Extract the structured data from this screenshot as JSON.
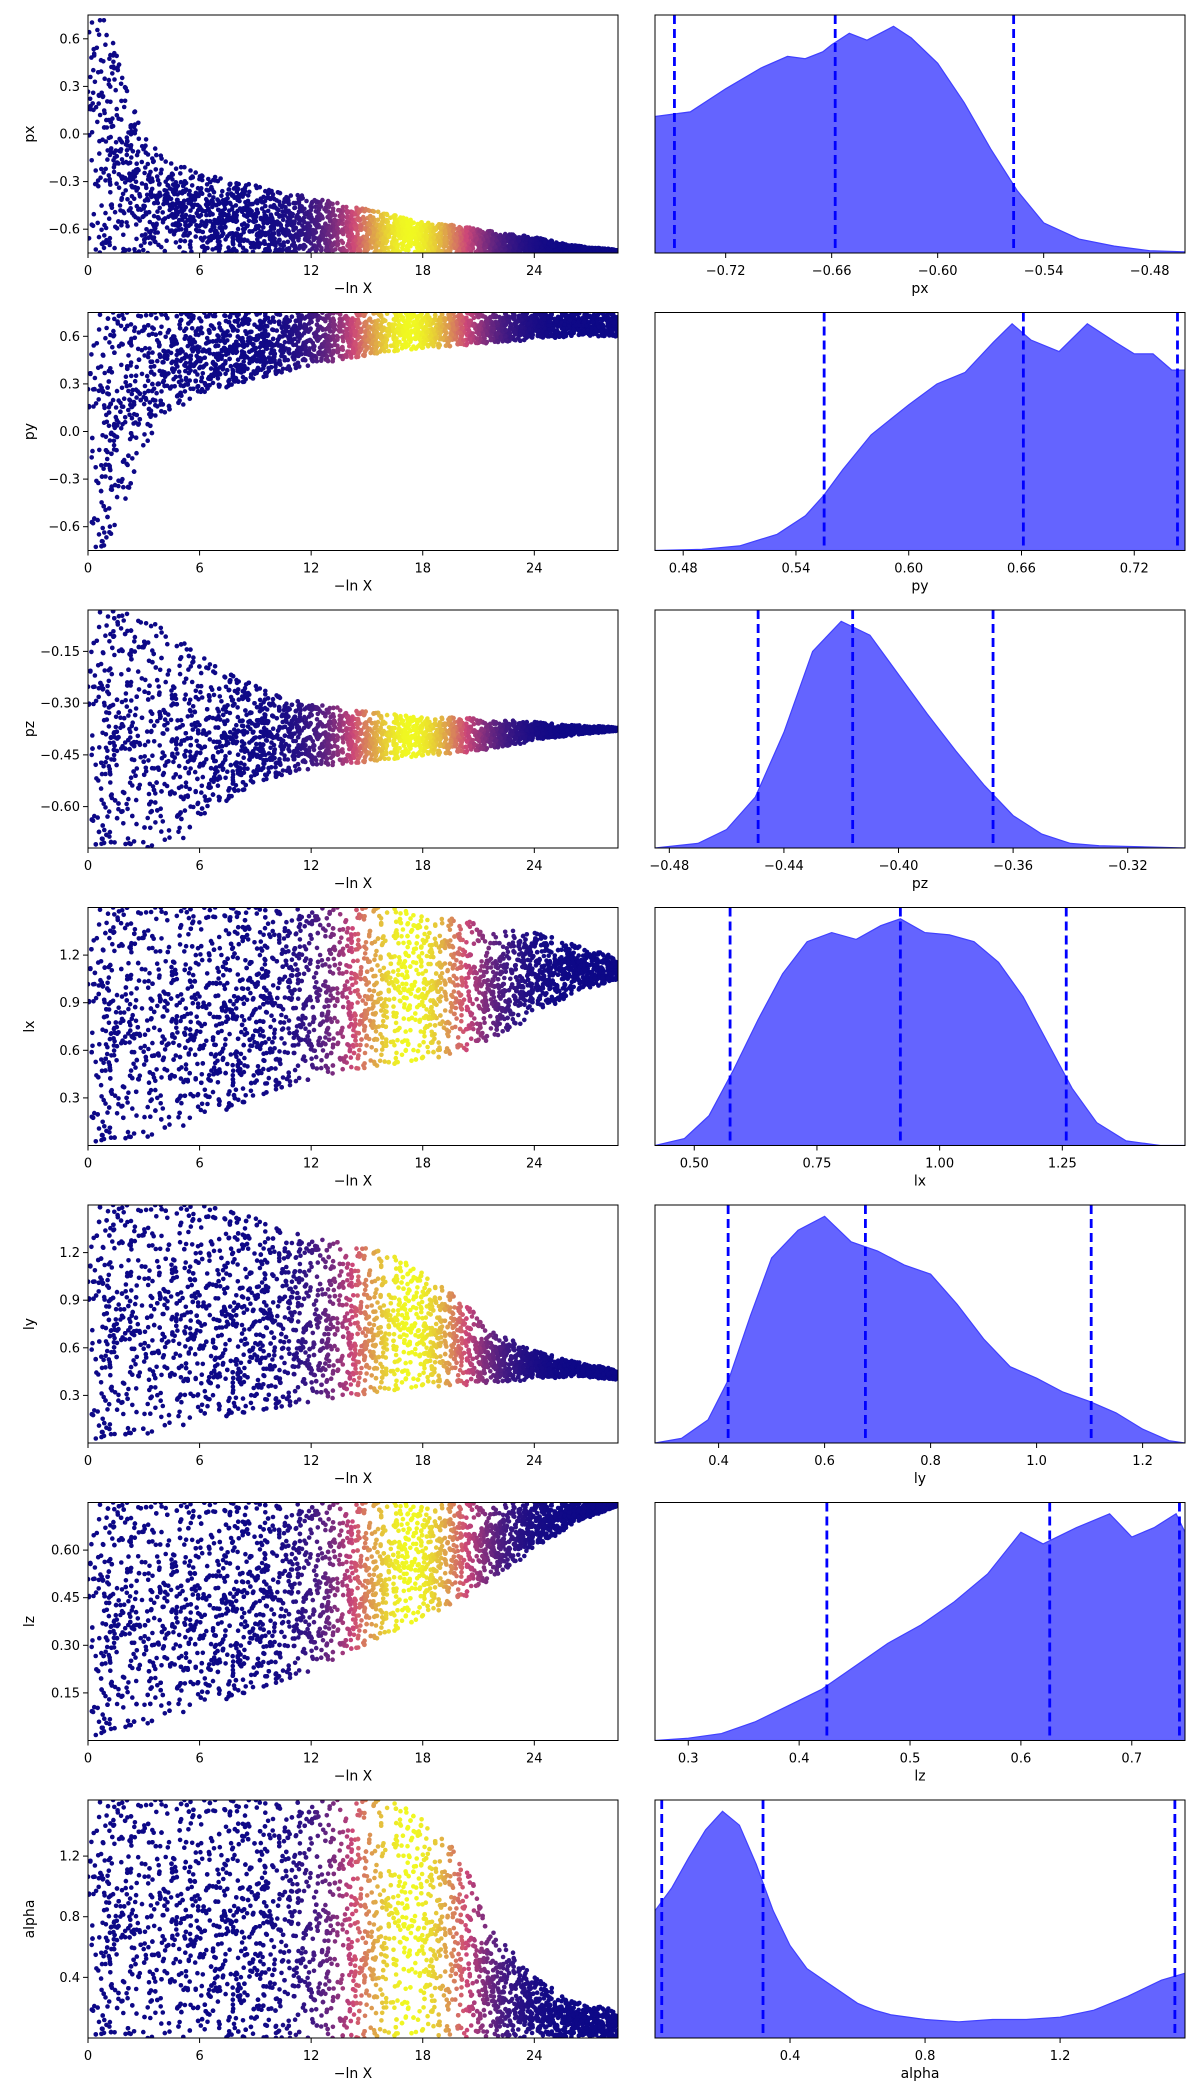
{
  "figure": {
    "background": "#ffffff"
  },
  "colors": {
    "kde_fill": "#6464ff",
    "kde_edge": "#4040ff",
    "quantile_line": "#0000ff",
    "trace_low": "#0d0887",
    "trace_mid": "#cc4778",
    "trace_high": "#f0f921"
  },
  "chart_data": [
    {
      "type": "scatter",
      "panel": "trace",
      "param": "px",
      "xlabel": "−ln X",
      "ylabel": "px",
      "xlim": [
        0,
        28.5
      ],
      "ylim": [
        -0.75,
        0.75
      ],
      "xticks": [
        0,
        6,
        12,
        18,
        24
      ],
      "xtick_labels": [
        "0",
        "6",
        "12",
        "18",
        "24"
      ],
      "yticks": [
        0.6,
        0.3,
        0.0,
        -0.3,
        -0.6
      ],
      "ytick_labels": [
        "0.6",
        "0.3",
        "0.0",
        "−0.3",
        "−0.6"
      ],
      "envelope": {
        "x": [
          0,
          1,
          2,
          3,
          4,
          6,
          8,
          10,
          12,
          14,
          16,
          18,
          20,
          22,
          24,
          26,
          28.5
        ],
        "upper": [
          0.75,
          0.72,
          0.3,
          0.0,
          -0.15,
          -0.25,
          -0.3,
          -0.35,
          -0.4,
          -0.45,
          -0.5,
          -0.55,
          -0.58,
          -0.62,
          -0.65,
          -0.7,
          -0.73
        ],
        "lower": [
          -0.75,
          -0.75,
          -0.75,
          -0.75,
          -0.75,
          -0.75,
          -0.75,
          -0.75,
          -0.75,
          -0.75,
          -0.75,
          -0.75,
          -0.75,
          -0.75,
          -0.75,
          -0.75,
          -0.75
        ]
      },
      "color_peak_x": 17.3
    },
    {
      "type": "area",
      "panel": "marginal",
      "param": "px",
      "xlabel": "px",
      "xlim": [
        -0.76,
        -0.46
      ],
      "xticks": [
        -0.72,
        -0.66,
        -0.6,
        -0.54,
        -0.48
      ],
      "xtick_labels": [
        "−0.72",
        "−0.66",
        "−0.60",
        "−0.54",
        "−0.48"
      ],
      "x": [
        -0.76,
        -0.74,
        -0.72,
        -0.7,
        -0.685,
        -0.675,
        -0.665,
        -0.66,
        -0.65,
        -0.64,
        -0.625,
        -0.615,
        -0.6,
        -0.585,
        -0.57,
        -0.555,
        -0.54,
        -0.52,
        -0.5,
        -0.48,
        -0.46
      ],
      "y": [
        0.59,
        0.61,
        0.71,
        0.8,
        0.85,
        0.84,
        0.87,
        0.9,
        0.95,
        0.92,
        0.98,
        0.93,
        0.82,
        0.65,
        0.45,
        0.27,
        0.13,
        0.06,
        0.03,
        0.01,
        0.005
      ],
      "quantiles": [
        -0.749,
        -0.658,
        -0.557
      ]
    },
    {
      "type": "scatter",
      "panel": "trace",
      "param": "py",
      "xlabel": "−ln X",
      "ylabel": "py",
      "xlim": [
        0,
        28.5
      ],
      "ylim": [
        -0.75,
        0.75
      ],
      "xticks": [
        0,
        6,
        12,
        18,
        24
      ],
      "xtick_labels": [
        "0",
        "6",
        "12",
        "18",
        "24"
      ],
      "yticks": [
        0.6,
        0.3,
        0.0,
        -0.3,
        -0.6
      ],
      "ytick_labels": [
        "0.6",
        "0.3",
        "0.0",
        "−0.3",
        "−0.6"
      ],
      "envelope": {
        "x": [
          0,
          1,
          2,
          3,
          4,
          6,
          8,
          10,
          12,
          14,
          16,
          18,
          20,
          22,
          24,
          26,
          28.5
        ],
        "upper": [
          0.75,
          0.75,
          0.75,
          0.75,
          0.75,
          0.75,
          0.75,
          0.75,
          0.75,
          0.75,
          0.75,
          0.75,
          0.75,
          0.75,
          0.75,
          0.75,
          0.75
        ],
        "lower": [
          -0.75,
          -0.75,
          -0.45,
          -0.1,
          0.1,
          0.22,
          0.3,
          0.36,
          0.42,
          0.46,
          0.5,
          0.52,
          0.54,
          0.56,
          0.58,
          0.6,
          0.6
        ]
      },
      "color_peak_x": 17.3
    },
    {
      "type": "area",
      "panel": "marginal",
      "param": "py",
      "xlabel": "py",
      "xlim": [
        0.465,
        0.747
      ],
      "xticks": [
        0.48,
        0.54,
        0.6,
        0.66,
        0.72
      ],
      "xtick_labels": [
        "0.48",
        "0.54",
        "0.60",
        "0.66",
        "0.72"
      ],
      "x": [
        0.465,
        0.49,
        0.51,
        0.53,
        0.545,
        0.555,
        0.565,
        0.58,
        0.6,
        0.615,
        0.63,
        0.645,
        0.655,
        0.665,
        0.68,
        0.695,
        0.71,
        0.72,
        0.73,
        0.74,
        0.747
      ],
      "y": [
        0.0,
        0.005,
        0.02,
        0.07,
        0.15,
        0.24,
        0.35,
        0.5,
        0.63,
        0.72,
        0.77,
        0.9,
        0.98,
        0.91,
        0.86,
        0.98,
        0.9,
        0.85,
        0.85,
        0.78,
        0.78
      ],
      "quantiles": [
        0.555,
        0.661,
        0.743
      ]
    },
    {
      "type": "scatter",
      "panel": "trace",
      "param": "pz",
      "xlabel": "−ln X",
      "ylabel": "pz",
      "xlim": [
        0,
        28.5
      ],
      "ylim": [
        -0.72,
        -0.03
      ],
      "xticks": [
        0,
        6,
        12,
        18,
        24
      ],
      "xtick_labels": [
        "0",
        "6",
        "12",
        "18",
        "24"
      ],
      "yticks": [
        -0.15,
        -0.3,
        -0.45,
        -0.6
      ],
      "ytick_labels": [
        "−0.15",
        "−0.30",
        "−0.45",
        "−0.60"
      ],
      "envelope": {
        "x": [
          0,
          1,
          3,
          5,
          7,
          9,
          11,
          13,
          15,
          17,
          19,
          21,
          23,
          25,
          28.5
        ],
        "upper": [
          -0.03,
          -0.03,
          -0.05,
          -0.12,
          -0.2,
          -0.25,
          -0.29,
          -0.31,
          -0.325,
          -0.335,
          -0.34,
          -0.345,
          -0.35,
          -0.36,
          -0.37
        ],
        "lower": [
          -0.72,
          -0.72,
          -0.72,
          -0.7,
          -0.6,
          -0.53,
          -0.5,
          -0.48,
          -0.47,
          -0.46,
          -0.45,
          -0.44,
          -0.42,
          -0.4,
          -0.38
        ]
      },
      "color_peak_x": 17.3
    },
    {
      "type": "area",
      "panel": "marginal",
      "param": "pz",
      "xlabel": "pz",
      "xlim": [
        -0.485,
        -0.3
      ],
      "xticks": [
        -0.48,
        -0.44,
        -0.4,
        -0.36,
        -0.32
      ],
      "xtick_labels": [
        "−0.48",
        "−0.44",
        "−0.40",
        "−0.36",
        "−0.32"
      ],
      "x": [
        -0.485,
        -0.47,
        -0.46,
        -0.45,
        -0.44,
        -0.43,
        -0.42,
        -0.41,
        -0.4,
        -0.39,
        -0.38,
        -0.37,
        -0.36,
        -0.35,
        -0.34,
        -0.33,
        -0.3
      ],
      "y": [
        0.0,
        0.02,
        0.08,
        0.22,
        0.5,
        0.85,
        0.98,
        0.92,
        0.75,
        0.58,
        0.42,
        0.27,
        0.14,
        0.06,
        0.02,
        0.01,
        0.0
      ],
      "quantiles": [
        -0.449,
        -0.416,
        -0.367
      ]
    },
    {
      "type": "scatter",
      "panel": "trace",
      "param": "lx",
      "xlabel": "−ln X",
      "ylabel": "lx",
      "xlim": [
        0,
        28.5
      ],
      "ylim": [
        0.0,
        1.5
      ],
      "xticks": [
        0,
        6,
        12,
        18,
        24
      ],
      "xtick_labels": [
        "0",
        "6",
        "12",
        "18",
        "24"
      ],
      "yticks": [
        1.2,
        0.9,
        0.6,
        0.3
      ],
      "ytick_labels": [
        "1.2",
        "0.9",
        "0.6",
        "0.3"
      ],
      "envelope": {
        "x": [
          0,
          2,
          4,
          6,
          8,
          10,
          12,
          14,
          16,
          18,
          20,
          22,
          24,
          26,
          28.5
        ],
        "upper": [
          1.5,
          1.5,
          1.5,
          1.5,
          1.5,
          1.5,
          1.5,
          1.5,
          1.5,
          1.48,
          1.42,
          1.38,
          1.34,
          1.28,
          1.18
        ],
        "lower": [
          0.0,
          0.02,
          0.08,
          0.15,
          0.25,
          0.35,
          0.42,
          0.48,
          0.5,
          0.52,
          0.58,
          0.68,
          0.82,
          0.95,
          1.05
        ]
      },
      "color_peak_x": 17.3
    },
    {
      "type": "area",
      "panel": "marginal",
      "param": "lx",
      "xlabel": "lx",
      "xlim": [
        0.42,
        1.5
      ],
      "xticks": [
        0.5,
        0.75,
        1.0,
        1.25
      ],
      "xtick_labels": [
        "0.50",
        "0.75",
        "1.00",
        "1.25"
      ],
      "x": [
        0.42,
        0.48,
        0.53,
        0.58,
        0.63,
        0.68,
        0.73,
        0.78,
        0.83,
        0.88,
        0.92,
        0.97,
        1.02,
        1.07,
        1.12,
        1.17,
        1.22,
        1.27,
        1.32,
        1.38,
        1.45,
        1.5
      ],
      "y": [
        0.0,
        0.03,
        0.13,
        0.33,
        0.55,
        0.75,
        0.89,
        0.93,
        0.9,
        0.96,
        0.99,
        0.93,
        0.92,
        0.89,
        0.8,
        0.65,
        0.45,
        0.25,
        0.1,
        0.02,
        0.0,
        0.0
      ],
      "quantiles": [
        0.573,
        0.92,
        1.258
      ]
    },
    {
      "type": "scatter",
      "panel": "trace",
      "param": "ly",
      "xlabel": "−ln X",
      "ylabel": "ly",
      "xlim": [
        0,
        28.5
      ],
      "ylim": [
        0.0,
        1.5
      ],
      "xticks": [
        0,
        6,
        12,
        18,
        24
      ],
      "xtick_labels": [
        "0",
        "6",
        "12",
        "18",
        "24"
      ],
      "yticks": [
        1.2,
        0.9,
        0.6,
        0.3
      ],
      "ytick_labels": [
        "1.2",
        "0.9",
        "0.6",
        "0.3"
      ],
      "envelope": {
        "x": [
          0,
          2,
          4,
          6,
          8,
          10,
          12,
          14,
          16,
          18,
          20,
          22,
          24,
          26,
          28.5
        ],
        "upper": [
          1.5,
          1.5,
          1.5,
          1.5,
          1.45,
          1.38,
          1.3,
          1.25,
          1.2,
          1.1,
          0.9,
          0.7,
          0.58,
          0.52,
          0.46
        ],
        "lower": [
          0.0,
          0.03,
          0.08,
          0.13,
          0.18,
          0.22,
          0.26,
          0.3,
          0.32,
          0.34,
          0.36,
          0.38,
          0.4,
          0.42,
          0.4
        ]
      },
      "color_peak_x": 17.3
    },
    {
      "type": "area",
      "panel": "marginal",
      "param": "ly",
      "xlabel": "ly",
      "xlim": [
        0.28,
        1.28
      ],
      "xticks": [
        0.4,
        0.6,
        0.8,
        1.0,
        1.2
      ],
      "xtick_labels": [
        "0.4",
        "0.6",
        "0.8",
        "1.0",
        "1.2"
      ],
      "x": [
        0.28,
        0.33,
        0.38,
        0.42,
        0.46,
        0.5,
        0.55,
        0.6,
        0.65,
        0.7,
        0.75,
        0.8,
        0.85,
        0.9,
        0.95,
        1.0,
        1.05,
        1.1,
        1.15,
        1.2,
        1.25,
        1.28
      ],
      "y": [
        0.0,
        0.02,
        0.1,
        0.28,
        0.55,
        0.8,
        0.92,
        0.98,
        0.87,
        0.83,
        0.77,
        0.73,
        0.6,
        0.45,
        0.33,
        0.28,
        0.22,
        0.18,
        0.13,
        0.06,
        0.01,
        0.0
      ],
      "quantiles": [
        0.418,
        0.677,
        1.103
      ]
    },
    {
      "type": "scatter",
      "panel": "trace",
      "param": "lz",
      "xlabel": "−ln X",
      "ylabel": "lz",
      "xlim": [
        0,
        28.5
      ],
      "ylim": [
        0.0,
        0.75
      ],
      "xticks": [
        0,
        6,
        12,
        18,
        24
      ],
      "xtick_labels": [
        "0",
        "6",
        "12",
        "18",
        "24"
      ],
      "yticks": [
        0.6,
        0.45,
        0.3,
        0.15
      ],
      "ytick_labels": [
        "0.60",
        "0.45",
        "0.30",
        "0.15"
      ],
      "envelope": {
        "x": [
          0,
          2,
          4,
          6,
          8,
          10,
          12,
          14,
          16,
          18,
          20,
          22,
          24,
          26,
          28.5
        ],
        "upper": [
          0.75,
          0.75,
          0.75,
          0.75,
          0.75,
          0.75,
          0.75,
          0.75,
          0.75,
          0.75,
          0.75,
          0.75,
          0.75,
          0.75,
          0.75
        ],
        "lower": [
          0.0,
          0.03,
          0.07,
          0.1,
          0.14,
          0.18,
          0.22,
          0.28,
          0.33,
          0.38,
          0.44,
          0.52,
          0.6,
          0.68,
          0.74
        ]
      },
      "color_peak_x": 17.3
    },
    {
      "type": "area",
      "panel": "marginal",
      "param": "lz",
      "xlabel": "lz",
      "xlim": [
        0.27,
        0.748
      ],
      "xticks": [
        0.3,
        0.4,
        0.5,
        0.6,
        0.7
      ],
      "xtick_labels": [
        "0.3",
        "0.4",
        "0.5",
        "0.6",
        "0.7"
      ],
      "x": [
        0.27,
        0.3,
        0.33,
        0.36,
        0.39,
        0.42,
        0.45,
        0.48,
        0.51,
        0.54,
        0.57,
        0.6,
        0.62,
        0.65,
        0.68,
        0.7,
        0.72,
        0.74,
        0.748
      ],
      "y": [
        0.0,
        0.01,
        0.03,
        0.08,
        0.15,
        0.22,
        0.32,
        0.42,
        0.5,
        0.6,
        0.72,
        0.9,
        0.85,
        0.92,
        0.98,
        0.88,
        0.92,
        0.98,
        0.9
      ],
      "quantiles": [
        0.425,
        0.626,
        0.743
      ]
    },
    {
      "type": "scatter",
      "panel": "trace",
      "param": "alpha",
      "xlabel": "−ln X",
      "ylabel": "alpha",
      "xlim": [
        0,
        28.5
      ],
      "ylim": [
        0.0,
        1.57
      ],
      "xticks": [
        0,
        6,
        12,
        18,
        24
      ],
      "xtick_labels": [
        "0",
        "6",
        "12",
        "18",
        "24"
      ],
      "yticks": [
        1.2,
        0.8,
        0.4
      ],
      "ytick_labels": [
        "1.2",
        "0.8",
        "0.4"
      ],
      "envelope": {
        "x": [
          0,
          2,
          4,
          6,
          8,
          10,
          12,
          14,
          16,
          18,
          20,
          22,
          24,
          26,
          28.5
        ],
        "upper": [
          1.57,
          1.57,
          1.57,
          1.57,
          1.57,
          1.57,
          1.57,
          1.57,
          1.57,
          1.5,
          1.2,
          0.7,
          0.4,
          0.25,
          0.18
        ],
        "lower": [
          0.0,
          0.0,
          0.0,
          0.0,
          0.0,
          0.0,
          0.0,
          0.0,
          0.0,
          0.0,
          0.0,
          0.0,
          0.0,
          0.0,
          0.0
        ]
      },
      "color_peak_x": 17.3
    },
    {
      "type": "area",
      "panel": "marginal",
      "param": "alpha",
      "xlabel": "alpha",
      "xlim": [
        0.0,
        1.57
      ],
      "xticks": [
        0.4,
        0.8,
        1.2
      ],
      "xtick_labels": [
        "0.4",
        "0.8",
        "1.2"
      ],
      "x": [
        0.0,
        0.05,
        0.1,
        0.15,
        0.2,
        0.25,
        0.3,
        0.35,
        0.4,
        0.45,
        0.5,
        0.55,
        0.6,
        0.65,
        0.7,
        0.8,
        0.9,
        1.0,
        1.1,
        1.2,
        1.3,
        1.4,
        1.5,
        1.57
      ],
      "y": [
        0.55,
        0.65,
        0.78,
        0.9,
        0.98,
        0.92,
        0.75,
        0.55,
        0.4,
        0.3,
        0.25,
        0.2,
        0.15,
        0.12,
        0.1,
        0.08,
        0.07,
        0.08,
        0.08,
        0.09,
        0.12,
        0.18,
        0.25,
        0.28
      ],
      "quantiles": [
        0.02,
        0.32,
        1.54
      ]
    }
  ]
}
